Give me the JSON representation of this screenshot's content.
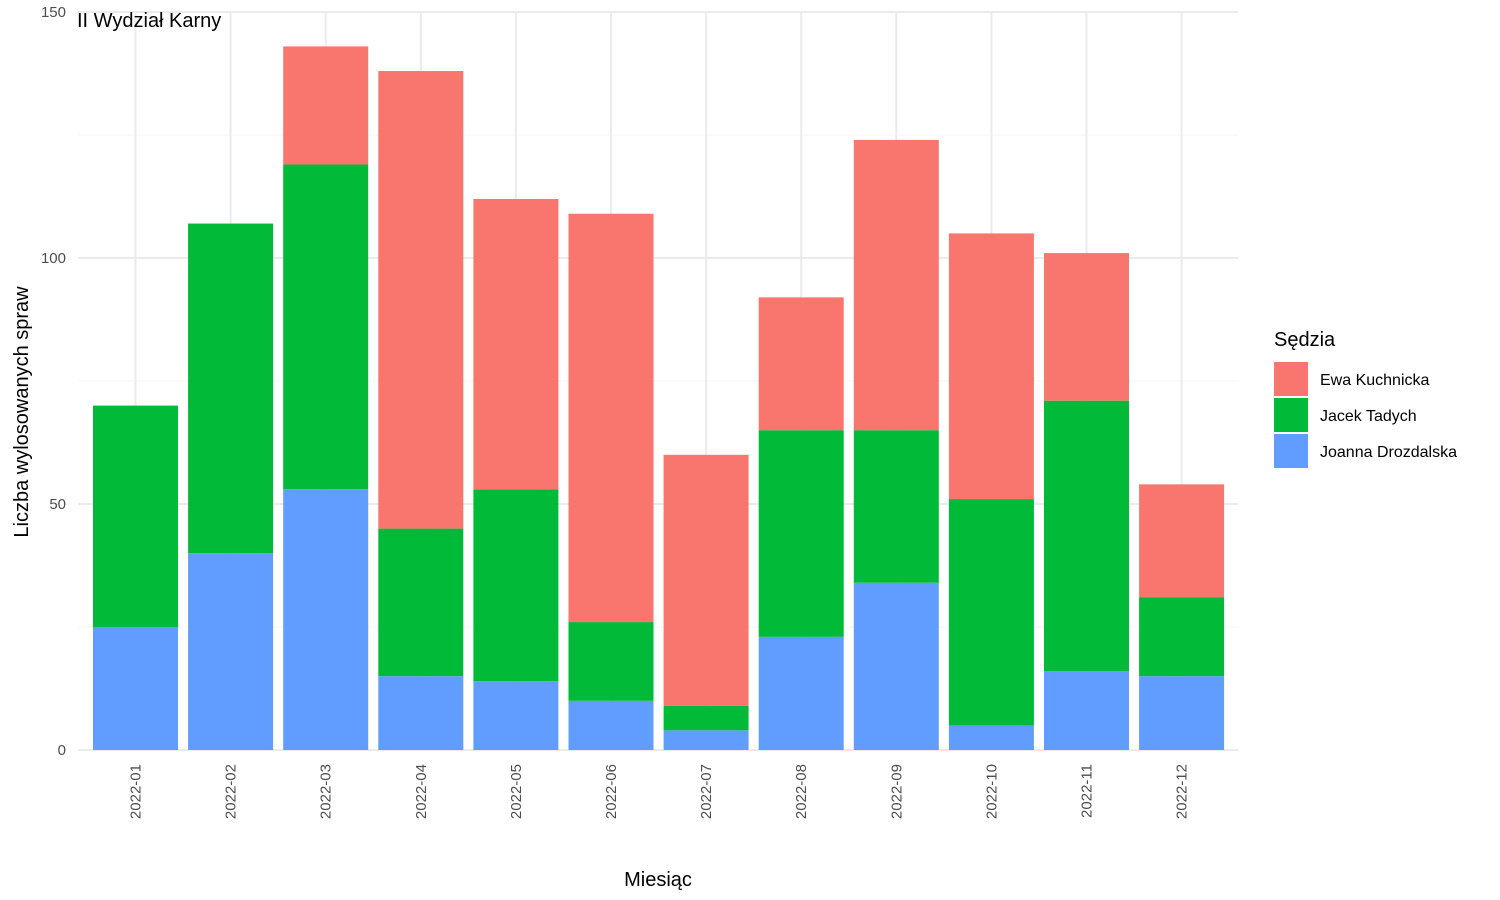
{
  "chart_data": {
    "type": "bar",
    "stacked": true,
    "title": "II Wydział Karny",
    "xlabel": "Miesiąc",
    "ylabel": "Liczba wylosowanych spraw",
    "ylim": [
      0,
      150
    ],
    "yticks": [
      0,
      50,
      100,
      150
    ],
    "grid": true,
    "legend_title": "Sędzia",
    "legend_position": "right",
    "categories": [
      "2022-01",
      "2022-02",
      "2022-03",
      "2022-04",
      "2022-05",
      "2022-06",
      "2022-07",
      "2022-08",
      "2022-09",
      "2022-10",
      "2022-11",
      "2022-12"
    ],
    "series": [
      {
        "name": "Joanna Drozdalska",
        "color": "#619CFF",
        "values": [
          25,
          40,
          53,
          15,
          14,
          10,
          4,
          23,
          34,
          5,
          16,
          15
        ]
      },
      {
        "name": "Jacek Tadych",
        "color": "#00BA38",
        "values": [
          45,
          67,
          66,
          30,
          39,
          16,
          5,
          42,
          31,
          46,
          55,
          16
        ]
      },
      {
        "name": "Ewa Kuchnicka",
        "color": "#F8766D",
        "values": [
          0,
          0,
          24,
          93,
          59,
          83,
          51,
          27,
          59,
          54,
          30,
          23
        ]
      }
    ],
    "legend_order": [
      "Ewa Kuchnicka",
      "Jacek Tadych",
      "Joanna Drozdalska"
    ]
  }
}
